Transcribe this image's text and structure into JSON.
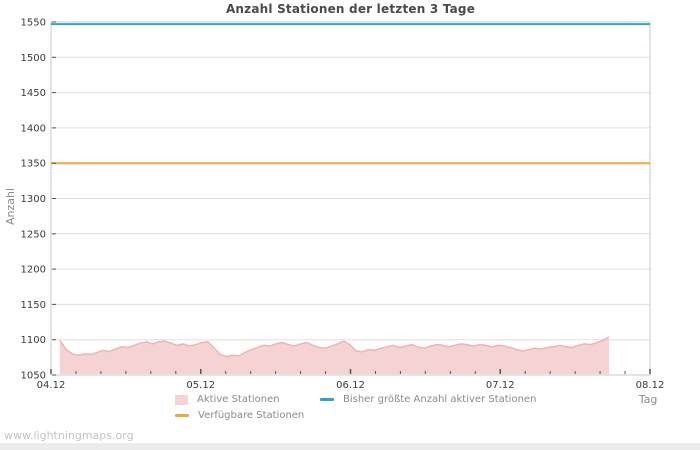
{
  "page": {
    "watermark": "www.lightningmaps.org"
  },
  "chart_data": {
    "type": "area",
    "title": "Anzahl Stationen der letzten 3 Tage",
    "xlabel": "Tag",
    "ylabel": "Anzahl",
    "xlim": [
      4,
      8
    ],
    "ylim": [
      1050,
      1550
    ],
    "grid": true,
    "legend_position": "bottom",
    "colors": {
      "frame": "#c8c8c8",
      "gridline": "#e0e0e0",
      "tick": "#555555",
      "tick_label": "#3a3a3a"
    },
    "y_ticks": [
      1050,
      1100,
      1150,
      1200,
      1250,
      1300,
      1350,
      1400,
      1450,
      1500,
      1550
    ],
    "x_ticks": [
      {
        "pos": 4,
        "label": "04.12"
      },
      {
        "pos": 5,
        "label": "05.12"
      },
      {
        "pos": 6,
        "label": "06.12"
      },
      {
        "pos": 7,
        "label": "07.12"
      },
      {
        "pos": 8,
        "label": "08.12"
      }
    ],
    "minor_x_ticks_per_day": 6,
    "series": [
      {
        "name": "Aktive Stationen",
        "type": "area",
        "fill_color": "#f4d3d2",
        "line_color": "#e9b7b5",
        "x_start": 4.06,
        "x_step": 0.0412,
        "values": [
          1099,
          1086,
          1080,
          1078,
          1080,
          1079,
          1082,
          1085,
          1083,
          1087,
          1090,
          1089,
          1092,
          1095,
          1097,
          1094,
          1097,
          1098,
          1095,
          1092,
          1094,
          1091,
          1093,
          1096,
          1097,
          1088,
          1079,
          1076,
          1078,
          1077,
          1082,
          1086,
          1089,
          1092,
          1091,
          1094,
          1096,
          1093,
          1091,
          1094,
          1096,
          1092,
          1089,
          1088,
          1091,
          1094,
          1098,
          1093,
          1084,
          1083,
          1086,
          1085,
          1088,
          1090,
          1092,
          1089,
          1091,
          1093,
          1090,
          1088,
          1091,
          1093,
          1092,
          1090,
          1092,
          1094,
          1093,
          1091,
          1093,
          1092,
          1090,
          1092,
          1091,
          1089,
          1086,
          1084,
          1086,
          1088,
          1087,
          1089,
          1090,
          1092,
          1090,
          1089,
          1092,
          1094,
          1093,
          1096,
          1099,
          1104
        ]
      },
      {
        "name": "Bisher größte Anzahl aktiver Stationen",
        "type": "hline",
        "line_color": "#2ba6c9",
        "value": 1547
      },
      {
        "name": "Verfügbare Stationen",
        "type": "hline",
        "line_color": "#f0a73c",
        "value": 1350
      }
    ]
  }
}
